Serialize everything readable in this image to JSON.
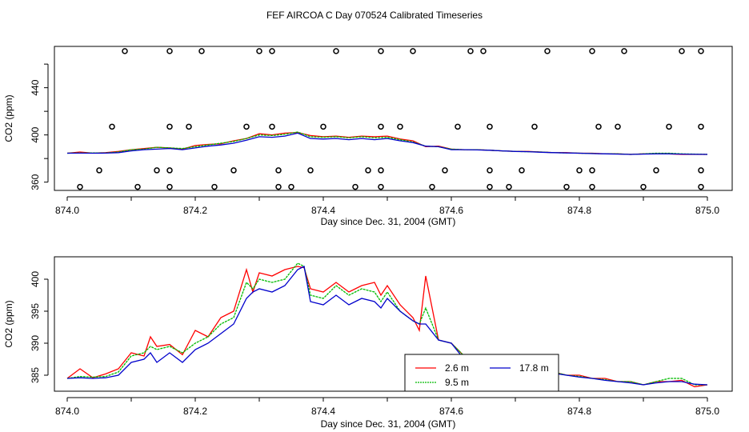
{
  "title": "FEF AIRCOA C  Day 070524  Calibrated Timeseries",
  "chart_data": [
    {
      "type": "scatter+line",
      "xlabel": "Day since Dec. 31, 2004 (GMT)",
      "ylabel": "CO2 (ppm)",
      "xlim": [
        874.0,
        875.0
      ],
      "ylim": [
        353,
        475
      ],
      "xticks": [
        "874.0",
        "874.2",
        "874.4",
        "874.6",
        "874.8",
        "875.0"
      ],
      "yticks": [
        "360",
        "400",
        "440"
      ],
      "series": [
        {
          "name": "2.6 m",
          "color": "#ff0000",
          "x": [
            874.0,
            874.02,
            874.04,
            874.06,
            874.08,
            874.1,
            874.12,
            874.14,
            874.16,
            874.18,
            874.2,
            874.22,
            874.24,
            874.26,
            874.28,
            874.3,
            874.32,
            874.34,
            874.36,
            874.38,
            874.4,
            874.42,
            874.44,
            874.46,
            874.48,
            874.5,
            874.52,
            874.54,
            874.56,
            874.58,
            874.6,
            874.62,
            874.64,
            874.66,
            874.68,
            874.7,
            874.72,
            874.74,
            874.76,
            874.78,
            874.8,
            874.82,
            874.84,
            874.86,
            874.88,
            874.9,
            874.92,
            874.94,
            874.96,
            874.98,
            875.0
          ],
          "y": [
            384.5,
            385.5,
            384.6,
            385.0,
            386.0,
            387.5,
            388.5,
            389.5,
            389.0,
            388.0,
            391.0,
            392.0,
            392.5,
            395.0,
            397.0,
            401.0,
            400.0,
            401.5,
            402.0,
            399.5,
            398.5,
            399.0,
            398.0,
            399.0,
            398.5,
            399.0,
            396.5,
            395.0,
            390.0,
            390.5,
            388.0,
            387.5,
            387.5,
            387.0,
            386.5,
            386.0,
            386.0,
            385.5,
            385.0,
            385.0,
            384.5,
            384.5,
            384.0,
            384.0,
            383.5,
            384.0,
            384.0,
            384.0,
            383.5,
            383.5,
            383.5
          ]
        },
        {
          "name": "9.5 m",
          "color": "#00bb00",
          "x": [
            874.0,
            874.02,
            874.04,
            874.06,
            874.08,
            874.1,
            874.12,
            874.14,
            874.16,
            874.18,
            874.2,
            874.22,
            874.24,
            874.26,
            874.28,
            874.3,
            874.32,
            874.34,
            874.36,
            874.38,
            874.4,
            874.42,
            874.44,
            874.46,
            874.48,
            874.5,
            874.52,
            874.54,
            874.56,
            874.58,
            874.6,
            874.62,
            874.64,
            874.66,
            874.68,
            874.7,
            874.72,
            874.74,
            874.76,
            874.78,
            874.8,
            874.82,
            874.84,
            874.86,
            874.88,
            874.9,
            874.92,
            874.94,
            874.96,
            874.98,
            875.0
          ],
          "y": [
            384.5,
            384.8,
            384.7,
            384.8,
            385.5,
            387.5,
            388.0,
            389.5,
            389.0,
            388.5,
            390.0,
            391.5,
            393.0,
            394.5,
            397.0,
            400.0,
            399.5,
            400.5,
            402.5,
            398.5,
            398.0,
            398.5,
            397.5,
            398.5,
            397.5,
            398.0,
            396.0,
            394.0,
            390.5,
            390.0,
            388.0,
            387.5,
            387.5,
            387.0,
            386.5,
            386.0,
            385.8,
            385.5,
            385.0,
            384.8,
            384.5,
            384.3,
            384.0,
            384.0,
            383.5,
            384.0,
            384.5,
            384.5,
            384.0,
            383.8,
            383.5
          ]
        },
        {
          "name": "17.8 m",
          "color": "#0000cc",
          "x": [
            874.0,
            874.02,
            874.04,
            874.06,
            874.08,
            874.1,
            874.12,
            874.14,
            874.16,
            874.18,
            874.2,
            874.22,
            874.24,
            874.26,
            874.28,
            874.3,
            874.32,
            874.34,
            874.36,
            874.38,
            874.4,
            874.42,
            874.44,
            874.46,
            874.48,
            874.5,
            874.52,
            874.54,
            874.56,
            874.58,
            874.6,
            874.62,
            874.64,
            874.66,
            874.68,
            874.7,
            874.72,
            874.74,
            874.76,
            874.78,
            874.8,
            874.82,
            874.84,
            874.86,
            874.88,
            874.9,
            874.92,
            874.94,
            874.96,
            874.98,
            875.0
          ],
          "y": [
            384.5,
            384.6,
            384.5,
            384.6,
            385.0,
            386.5,
            387.5,
            388.0,
            388.5,
            387.5,
            389.0,
            390.5,
            391.5,
            393.0,
            395.5,
            398.5,
            398.0,
            399.0,
            401.5,
            397.0,
            396.5,
            397.0,
            396.0,
            397.0,
            396.0,
            397.0,
            395.0,
            393.5,
            390.5,
            390.0,
            387.5,
            387.5,
            387.3,
            387.0,
            386.5,
            386.0,
            385.8,
            385.3,
            385.0,
            384.7,
            384.5,
            384.2,
            384.0,
            383.8,
            383.5,
            383.8,
            384.0,
            384.0,
            383.8,
            383.6,
            383.5
          ]
        }
      ],
      "markers": {
        "shape": "open-circle",
        "points": [
          [
            874.09,
            471
          ],
          [
            874.16,
            471
          ],
          [
            874.21,
            471
          ],
          [
            874.3,
            471
          ],
          [
            874.32,
            471
          ],
          [
            874.42,
            471
          ],
          [
            874.49,
            471
          ],
          [
            874.54,
            471
          ],
          [
            874.63,
            471
          ],
          [
            874.65,
            471
          ],
          [
            874.75,
            471
          ],
          [
            874.82,
            471
          ],
          [
            874.87,
            471
          ],
          [
            874.96,
            471
          ],
          [
            874.99,
            471
          ],
          [
            874.07,
            407
          ],
          [
            874.16,
            407
          ],
          [
            874.19,
            407
          ],
          [
            874.28,
            407
          ],
          [
            874.32,
            407
          ],
          [
            874.4,
            407
          ],
          [
            874.49,
            407
          ],
          [
            874.52,
            407
          ],
          [
            874.61,
            407
          ],
          [
            874.66,
            407
          ],
          [
            874.73,
            407
          ],
          [
            874.83,
            407
          ],
          [
            874.86,
            407
          ],
          [
            874.94,
            407
          ],
          [
            874.99,
            407
          ],
          [
            874.05,
            370
          ],
          [
            874.14,
            370
          ],
          [
            874.16,
            370
          ],
          [
            874.26,
            370
          ],
          [
            874.33,
            370
          ],
          [
            874.38,
            370
          ],
          [
            874.47,
            370
          ],
          [
            874.49,
            370
          ],
          [
            874.59,
            370
          ],
          [
            874.66,
            370
          ],
          [
            874.71,
            370
          ],
          [
            874.8,
            370
          ],
          [
            874.82,
            370
          ],
          [
            874.92,
            370
          ],
          [
            874.99,
            370
          ],
          [
            874.02,
            356
          ],
          [
            874.11,
            356
          ],
          [
            874.16,
            356
          ],
          [
            874.23,
            356
          ],
          [
            874.33,
            356
          ],
          [
            874.35,
            356
          ],
          [
            874.45,
            356
          ],
          [
            874.49,
            356
          ],
          [
            874.57,
            356
          ],
          [
            874.66,
            356
          ],
          [
            874.69,
            356
          ],
          [
            874.78,
            356
          ],
          [
            874.82,
            356
          ],
          [
            874.9,
            356
          ],
          [
            874.99,
            356
          ]
        ]
      }
    },
    {
      "type": "line",
      "xlabel": "Day since Dec. 31, 2004 (GMT)",
      "ylabel": "CO2 (ppm)",
      "xlim": [
        874.0,
        875.0
      ],
      "ylim": [
        382.5,
        403.5
      ],
      "xticks": [
        "874.0",
        "874.2",
        "874.4",
        "874.6",
        "874.8",
        "875.0"
      ],
      "yticks": [
        "385",
        "390",
        "395",
        "400"
      ],
      "legend": {
        "location": "bottom-center",
        "entries": [
          "2.6 m",
          "9.5 m",
          "17.8 m"
        ]
      },
      "series": [
        {
          "name": "2.6 m",
          "color": "#ff0000",
          "x": [
            874.0,
            874.02,
            874.04,
            874.06,
            874.08,
            874.1,
            874.12,
            874.13,
            874.14,
            874.16,
            874.18,
            874.2,
            874.22,
            874.24,
            874.26,
            874.28,
            874.29,
            874.3,
            874.32,
            874.34,
            874.36,
            874.37,
            874.38,
            874.4,
            874.42,
            874.44,
            874.46,
            874.48,
            874.49,
            874.5,
            874.52,
            874.54,
            874.55,
            874.56,
            874.58,
            874.6,
            874.62,
            874.64,
            874.66,
            874.68,
            874.7,
            874.72,
            874.74,
            874.76,
            874.78,
            874.8,
            874.82,
            874.84,
            874.86,
            874.88,
            874.9,
            874.92,
            874.94,
            874.96,
            874.98,
            875.0
          ],
          "y": [
            384.5,
            386.0,
            384.6,
            385.2,
            386.0,
            388.5,
            388.0,
            391.0,
            389.5,
            389.8,
            388.2,
            392.0,
            391.0,
            394.0,
            395.0,
            401.5,
            398.0,
            401.0,
            400.5,
            401.5,
            402.0,
            401.8,
            398.5,
            398.0,
            399.5,
            398.0,
            399.0,
            399.5,
            397.5,
            399.0,
            396.0,
            394.0,
            392.0,
            400.5,
            390.5,
            390.0,
            388.0,
            387.5,
            387.5,
            387.0,
            386.5,
            386.0,
            386.0,
            385.5,
            385.0,
            385.0,
            384.5,
            384.5,
            384.0,
            384.0,
            383.5,
            384.0,
            384.0,
            384.2,
            383.2,
            383.5
          ]
        },
        {
          "name": "9.5 m",
          "color": "#00bb00",
          "x": [
            874.0,
            874.02,
            874.04,
            874.06,
            874.08,
            874.1,
            874.12,
            874.13,
            874.14,
            874.16,
            874.18,
            874.2,
            874.22,
            874.24,
            874.26,
            874.28,
            874.29,
            874.3,
            874.32,
            874.34,
            874.36,
            874.37,
            874.38,
            874.4,
            874.42,
            874.44,
            874.46,
            874.48,
            874.49,
            874.5,
            874.52,
            874.54,
            874.55,
            874.56,
            874.58,
            874.6,
            874.62,
            874.64,
            874.66,
            874.68,
            874.7,
            874.72,
            874.74,
            874.76,
            874.78,
            874.8,
            874.82,
            874.84,
            874.86,
            874.88,
            874.9,
            874.92,
            874.94,
            874.96,
            874.98,
            875.0
          ],
          "y": [
            384.5,
            384.8,
            384.7,
            384.8,
            385.5,
            388.0,
            388.5,
            389.5,
            389.0,
            389.5,
            388.5,
            390.0,
            391.0,
            393.0,
            394.0,
            399.5,
            398.5,
            400.0,
            399.5,
            400.0,
            402.5,
            402.0,
            397.5,
            397.0,
            399.0,
            397.5,
            398.5,
            398.0,
            396.5,
            398.0,
            395.0,
            393.5,
            393.0,
            395.5,
            390.5,
            390.0,
            388.0,
            387.5,
            387.5,
            387.0,
            386.5,
            386.0,
            385.8,
            385.5,
            385.0,
            384.8,
            384.5,
            384.3,
            384.0,
            384.0,
            383.5,
            384.0,
            384.5,
            384.5,
            383.5,
            383.5
          ]
        },
        {
          "name": "17.8 m",
          "color": "#0000cc",
          "x": [
            874.0,
            874.02,
            874.04,
            874.06,
            874.08,
            874.1,
            874.12,
            874.13,
            874.14,
            874.16,
            874.18,
            874.2,
            874.22,
            874.24,
            874.26,
            874.28,
            874.29,
            874.3,
            874.32,
            874.34,
            874.36,
            874.37,
            874.38,
            874.4,
            874.42,
            874.44,
            874.46,
            874.48,
            874.49,
            874.5,
            874.52,
            874.54,
            874.55,
            874.56,
            874.58,
            874.6,
            874.62,
            874.64,
            874.66,
            874.68,
            874.7,
            874.72,
            874.74,
            874.76,
            874.78,
            874.8,
            874.82,
            874.84,
            874.86,
            874.88,
            874.9,
            874.92,
            874.94,
            874.96,
            874.98,
            875.0
          ],
          "y": [
            384.5,
            384.6,
            384.5,
            384.6,
            385.0,
            387.0,
            387.5,
            388.5,
            387.0,
            388.5,
            387.0,
            389.0,
            390.0,
            391.5,
            393.0,
            397.0,
            398.0,
            398.5,
            398.0,
            399.0,
            401.5,
            402.0,
            396.5,
            396.0,
            397.5,
            396.0,
            397.0,
            396.5,
            395.5,
            397.0,
            395.0,
            393.5,
            393.0,
            393.0,
            390.5,
            390.0,
            387.5,
            387.5,
            387.3,
            387.0,
            386.5,
            386.0,
            385.8,
            385.3,
            385.0,
            384.7,
            384.5,
            384.2,
            384.0,
            383.8,
            383.5,
            383.8,
            384.0,
            384.0,
            383.6,
            383.5
          ]
        }
      ]
    }
  ]
}
